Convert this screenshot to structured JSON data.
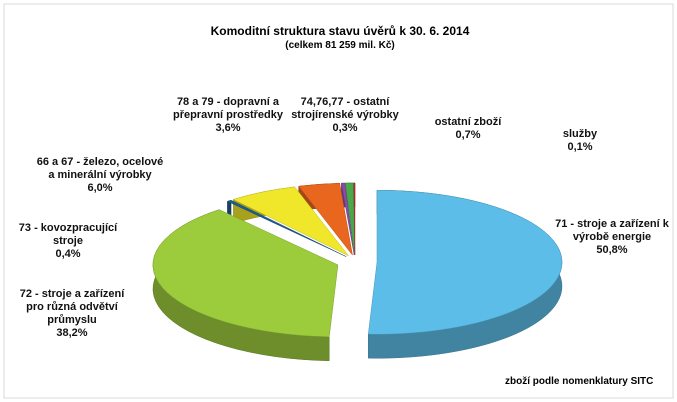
{
  "chart_data": {
    "type": "pie",
    "title": "Komoditní struktura stavu úvěrů k 30. 6. 2014",
    "subtitle": "(celkem  81 259 mil. Kč)",
    "annotation": "zboží podle nomenklatury SITC",
    "categories": [
      "71 - stroje a zařízení k výrobě energie",
      "72 - stroje a zařízení pro různá odvětví průmyslu",
      "73 - kovozpracující stroje",
      "66 a 67 - železo, ocelové a minerální výrobky",
      "78 a 79 - dopravní a přepravní prostředky",
      "74,76,77 - ostatní strojírenské výrobky",
      "ostatní zboží",
      "služby"
    ],
    "values": [
      50.8,
      38.2,
      0.4,
      6.0,
      3.6,
      0.3,
      0.7,
      0.1
    ],
    "value_labels": [
      "50,8%",
      "38,2%",
      "0,4%",
      "6,0%",
      "3,6%",
      "0,3%",
      "0,7%",
      "0,1%"
    ],
    "colors": [
      "#5cbde8",
      "#9ccb3c",
      "#1d5c8c",
      "#f0e62a",
      "#e8661e",
      "#8a4aa8",
      "#4aa84a",
      "#c03030"
    ]
  }
}
